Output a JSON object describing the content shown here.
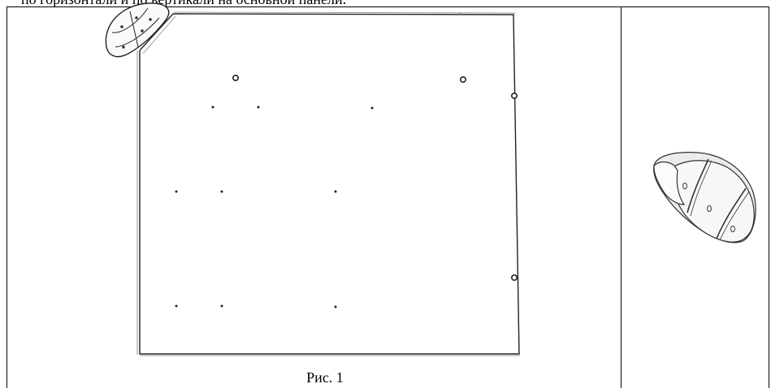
{
  "document": {
    "header_text": "по горизонтали и по вертикали на основной панели.",
    "figure_caption": "Рис. 1"
  }
}
